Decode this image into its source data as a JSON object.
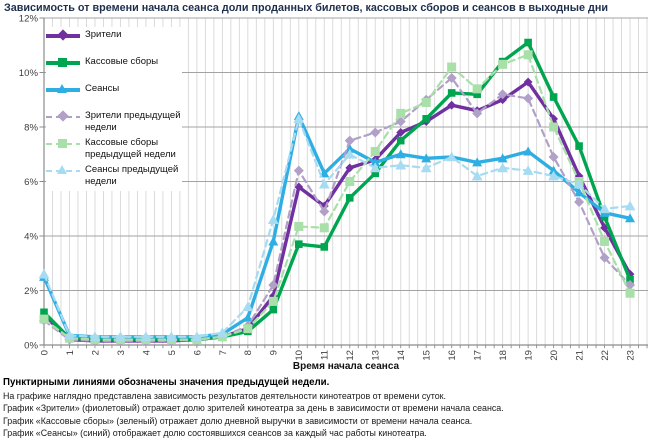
{
  "title": "Зависимость от времени начала сеанса доли проданных билетов, кассовых сборов и сеансов в выходные дни",
  "chart_data": {
    "type": "line",
    "x": [
      0,
      1,
      2,
      3,
      4,
      5,
      6,
      7,
      8,
      9,
      10,
      11,
      12,
      13,
      14,
      15,
      16,
      17,
      18,
      19,
      20,
      21,
      22,
      23
    ],
    "xlabel": "Время начала сеанса",
    "ylabel": "",
    "ylim": [
      0,
      12
    ],
    "yticks": [
      "0%",
      "2%",
      "4%",
      "6%",
      "8%",
      "10%",
      "12%"
    ],
    "grid": true,
    "legend_position": "top-left",
    "series": [
      {
        "name": "Зрители",
        "color": "#7030A0",
        "style": "solid",
        "marker": "diamond",
        "values": [
          1.1,
          0.2,
          0.15,
          0.15,
          0.15,
          0.15,
          0.2,
          0.3,
          0.6,
          1.8,
          5.8,
          5.1,
          6.5,
          6.8,
          7.8,
          8.2,
          8.8,
          8.6,
          9.0,
          9.65,
          8.3,
          6.2,
          4.3,
          2.6
        ]
      },
      {
        "name": "Кассовые сборы",
        "color": "#00A54F",
        "style": "solid",
        "marker": "square",
        "values": [
          1.2,
          0.25,
          0.2,
          0.2,
          0.2,
          0.2,
          0.2,
          0.3,
          0.5,
          1.3,
          3.7,
          3.6,
          5.4,
          6.3,
          7.5,
          8.3,
          9.25,
          9.2,
          10.4,
          11.1,
          9.1,
          7.3,
          4.7,
          2.4
        ]
      },
      {
        "name": "Сеансы",
        "color": "#2FAEE3",
        "style": "solid",
        "marker": "triangle",
        "values": [
          2.5,
          0.35,
          0.3,
          0.3,
          0.3,
          0.3,
          0.3,
          0.4,
          1.0,
          3.8,
          8.4,
          6.3,
          7.2,
          6.7,
          7.0,
          6.85,
          6.9,
          6.7,
          6.85,
          7.1,
          6.4,
          5.6,
          4.85,
          4.65
        ]
      },
      {
        "name": "Зрители предыдущей недели",
        "color": "#B1A0C7",
        "style": "dashed",
        "marker": "diamond",
        "values": [
          0.9,
          0.2,
          0.15,
          0.15,
          0.15,
          0.15,
          0.2,
          0.3,
          0.7,
          2.2,
          6.4,
          4.9,
          7.5,
          7.8,
          8.2,
          9.0,
          9.8,
          8.5,
          9.2,
          9.05,
          6.9,
          5.25,
          3.2,
          2.2
        ]
      },
      {
        "name": "Кассовые сборы предыдущей недели",
        "color": "#A9DFA9",
        "style": "dashed",
        "marker": "square",
        "values": [
          0.95,
          0.25,
          0.2,
          0.2,
          0.2,
          0.2,
          0.2,
          0.3,
          0.6,
          1.6,
          4.35,
          4.3,
          6.0,
          7.1,
          8.5,
          8.9,
          10.2,
          9.4,
          10.3,
          10.65,
          8.0,
          6.0,
          3.8,
          1.9
        ]
      },
      {
        "name": "Сеансы предыдущей недели",
        "color": "#A6DBF2",
        "style": "dashed",
        "marker": "triangle",
        "values": [
          2.6,
          0.35,
          0.3,
          0.3,
          0.3,
          0.3,
          0.3,
          0.45,
          1.4,
          4.6,
          8.3,
          5.9,
          7.0,
          6.5,
          6.6,
          6.5,
          6.9,
          6.2,
          6.5,
          6.4,
          6.2,
          5.9,
          5.0,
          5.1
        ]
      }
    ]
  },
  "footer": {
    "bold_note": "Пунктирными линиями обозначены значения предыдущей недели.",
    "lines": [
      "На графике наглядно представлена зависимость результатов деятельности кинотеатров от времени суток.",
      "График «Зрители» (фиолетовый) отражает долю зрителей кинотеатра за день в зависимости от времени начала сеанса.",
      "График «Кассовые сборы» (зеленый) отражает долю дневной выручки в зависимости от времени начала сеанса.",
      "График «Сеансы» (синий) отображает долю состоявшихся сеансов за каждый час работы кинотеатра."
    ]
  }
}
